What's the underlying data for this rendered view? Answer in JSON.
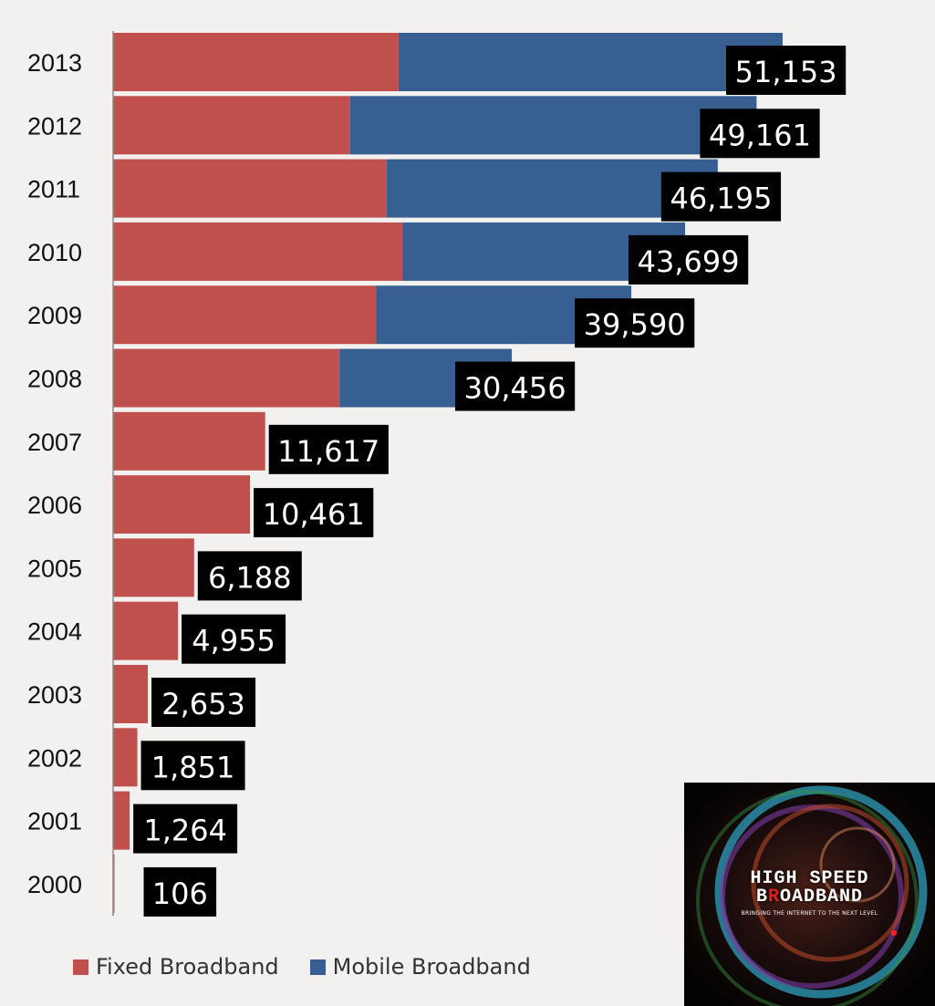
{
  "chart_data": {
    "type": "bar",
    "orientation": "horizontal",
    "stacked": true,
    "categories": [
      "2013",
      "2012",
      "2011",
      "2010",
      "2009",
      "2008",
      "2007",
      "2006",
      "2005",
      "2004",
      "2003",
      "2002",
      "2001",
      "2000"
    ],
    "series": [
      {
        "name": "Fixed Broadband",
        "color": "#c0504d",
        "values": [
          21800,
          18100,
          20900,
          22100,
          20100,
          17300,
          11617,
          10461,
          6188,
          4955,
          2653,
          1851,
          1264,
          106
        ]
      },
      {
        "name": "Mobile Broadband",
        "color": "#375f91",
        "values": [
          29353,
          31061,
          25295,
          21599,
          19490,
          13156,
          0,
          0,
          0,
          0,
          0,
          0,
          0,
          0
        ]
      }
    ],
    "totals": [
      "51,153",
      "49,161",
      "46,195",
      "43,699",
      "39,590",
      "30,456",
      "11,617",
      "10,461",
      "6,188",
      "4,955",
      "2,653",
      "1,851",
      "1,264",
      "106"
    ],
    "xlim": [
      0,
      52000
    ],
    "grid": false,
    "legend_position": "bottom-left"
  },
  "legend": {
    "fixed_label": "Fixed Broadband",
    "mobile_label": "Mobile Broadband",
    "fixed_color": "#c0504d",
    "mobile_color": "#375f91"
  },
  "logo": {
    "title_part1": "HIGH SPEED",
    "title_b": "B",
    "title_r": "R",
    "title_rest": "OADBAND",
    "tagline": "BRINGING THE INTERNET TO THE NEXT LEVEL"
  }
}
